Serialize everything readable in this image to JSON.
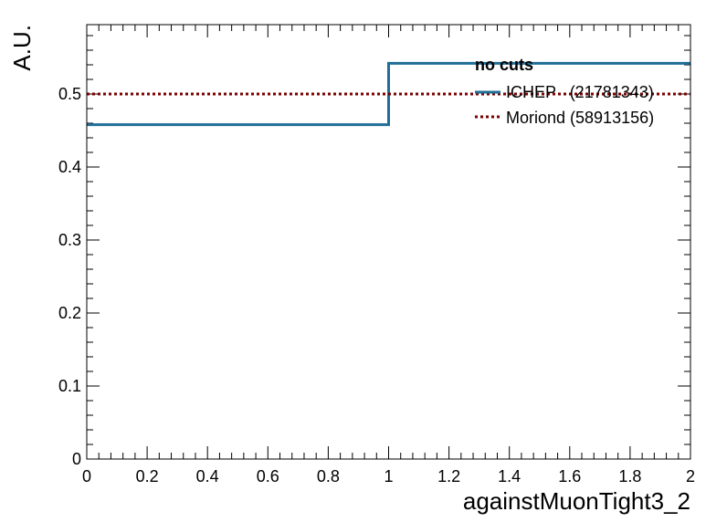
{
  "chart_data": {
    "type": "line",
    "xlabel": "againstMuonTight3_2",
    "ylabel": "A.U.",
    "xlim": [
      0,
      2
    ],
    "ylim": [
      0,
      0.595
    ],
    "x_ticks": [
      "0",
      "0.2",
      "0.4",
      "0.6",
      "0.8",
      "1",
      "1.2",
      "1.4",
      "1.6",
      "1.8",
      "2"
    ],
    "y_ticks": [
      "0",
      "0.1",
      "0.2",
      "0.3",
      "0.4",
      "0.5"
    ],
    "legend": {
      "header": "no cuts",
      "position": "top-right"
    },
    "bin_edges": [
      0,
      1,
      2
    ],
    "series": [
      {
        "name": "ICHEP   (21781343)",
        "values": [
          0.458,
          0.542
        ],
        "color": "#1f6e96",
        "line_style": "solid"
      },
      {
        "name": "Moriond (58913156)",
        "values": [
          0.5,
          0.5
        ],
        "color": "#7a0000",
        "line_style": "dotted"
      }
    ],
    "grid": false
  }
}
